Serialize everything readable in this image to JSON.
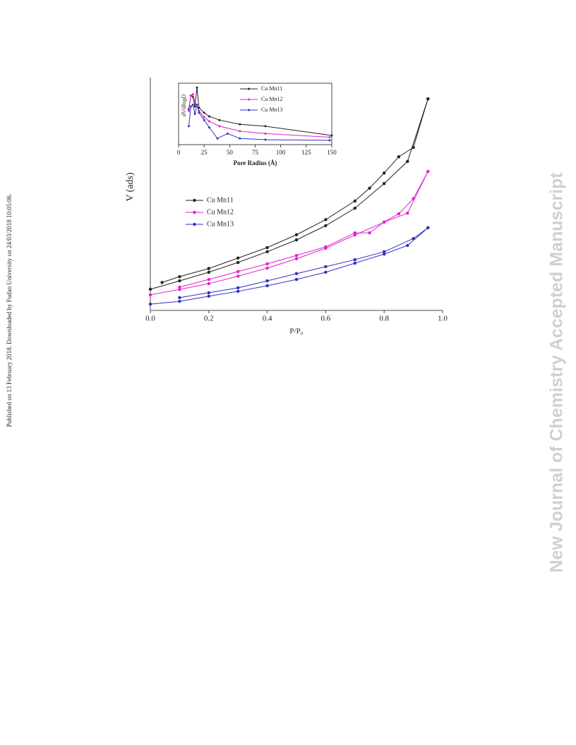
{
  "page": {
    "side_note": "Published on 13 February 2018. Downloaded by Fudan University on 24/03/2018 10:05:06.",
    "watermark": "New Journal of Chemistry Accepted Manuscript"
  },
  "chart_data": [
    {
      "type": "line",
      "xlabel": "P/P₀",
      "ylabel": "V (ads)",
      "legend": "upper left",
      "xlim": [
        0,
        1
      ],
      "xticks": [
        {
          "value": 0,
          "label": "0.0"
        },
        {
          "value": 0.2,
          "label": "0.2"
        },
        {
          "value": 0.4,
          "label": "0.4"
        },
        {
          "value": 0.6,
          "label": "0.6"
        },
        {
          "value": 0.8,
          "label": "0.8"
        },
        {
          "value": 1,
          "label": "1.0"
        }
      ],
      "ylim": [
        0,
        100
      ],
      "series": [
        {
          "name": "Cu Mn11",
          "color": "#222222",
          "x": [
            0,
            0.1,
            0.2,
            0.3,
            0.4,
            0.5,
            0.6,
            0.7,
            0.8,
            0.88,
            0.95
          ],
          "values": [
            9.1,
            12.7,
            16.4,
            20.6,
            25.2,
            30.3,
            36.4,
            43.9,
            54.5,
            64,
            90.9
          ],
          "desorption_x": [
            0.04,
            0.1,
            0.2,
            0.3,
            0.4,
            0.5,
            0.6,
            0.7,
            0.75,
            0.8,
            0.85,
            0.9,
            0.95
          ],
          "desorption_values": [
            12,
            14.5,
            18,
            22.5,
            27,
            32.5,
            39,
            47,
            52.5,
            59,
            66,
            70,
            90.9
          ]
        },
        {
          "name": "Cu Mn12",
          "color": "#e020d0",
          "x": [
            0,
            0.1,
            0.2,
            0.3,
            0.4,
            0.5,
            0.6,
            0.7,
            0.8,
            0.88,
            0.95
          ],
          "values": [
            6.7,
            9,
            11.5,
            14.7,
            18.2,
            22.2,
            26.7,
            32.4,
            37.9,
            41.8,
            59.7
          ],
          "desorption_x": [
            0.1,
            0.2,
            0.3,
            0.4,
            0.5,
            0.6,
            0.7,
            0.75,
            0.8,
            0.85,
            0.9,
            0.95
          ],
          "desorption_values": [
            10,
            13.3,
            16.7,
            20,
            23.6,
            27.3,
            33.3,
            33.3,
            38,
            41.5,
            48,
            59.7
          ]
        },
        {
          "name": "Cu Mn13",
          "color": "#3030c0",
          "x": [
            0,
            0.1,
            0.2,
            0.3,
            0.4,
            0.5,
            0.6,
            0.7,
            0.8,
            0.88,
            0.95
          ],
          "values": [
            2.7,
            3.9,
            6.1,
            8.2,
            10.6,
            13.3,
            16.4,
            20.3,
            24.2,
            27.9,
            35.5
          ],
          "desorption_x": [
            0.1,
            0.2,
            0.3,
            0.4,
            0.5,
            0.6,
            0.7,
            0.8,
            0.9,
            0.95
          ],
          "desorption_values": [
            5.5,
            7.6,
            9.7,
            12.7,
            15.8,
            18.8,
            21.8,
            25.2,
            30.9,
            35.5
          ]
        }
      ]
    },
    {
      "type": "line",
      "xlabel": "Pore Radius (Å)",
      "ylabel": "dV/dlogD",
      "legend": "upper right",
      "xlim": [
        0,
        150
      ],
      "xticks": [
        0,
        25,
        50,
        75,
        100,
        125,
        150
      ],
      "ylim": [
        0,
        100
      ],
      "series": [
        {
          "name": "Cu Mn11",
          "color": "#222222",
          "x": [
            10,
            12,
            14,
            16,
            18,
            20,
            25,
            30,
            40,
            60,
            85,
            150
          ],
          "values": [
            58,
            80,
            78,
            62,
            93,
            60,
            52,
            46,
            40,
            33,
            30,
            15
          ]
        },
        {
          "name": "Cu Mn12",
          "color": "#e020d0",
          "x": [
            10,
            12,
            14,
            16,
            20,
            25,
            30,
            40,
            60,
            85,
            148
          ],
          "values": [
            55,
            80,
            82,
            70,
            55,
            45,
            38,
            30,
            22,
            18,
            12
          ]
        },
        {
          "name": "Cu Mn13",
          "color": "#3030c0",
          "x": [
            10,
            12,
            14,
            16,
            18,
            20,
            25,
            30,
            38,
            48,
            60,
            85,
            148
          ],
          "values": [
            30,
            62,
            65,
            50,
            65,
            52,
            40,
            28,
            10,
            18,
            10,
            8,
            7
          ]
        }
      ]
    }
  ]
}
